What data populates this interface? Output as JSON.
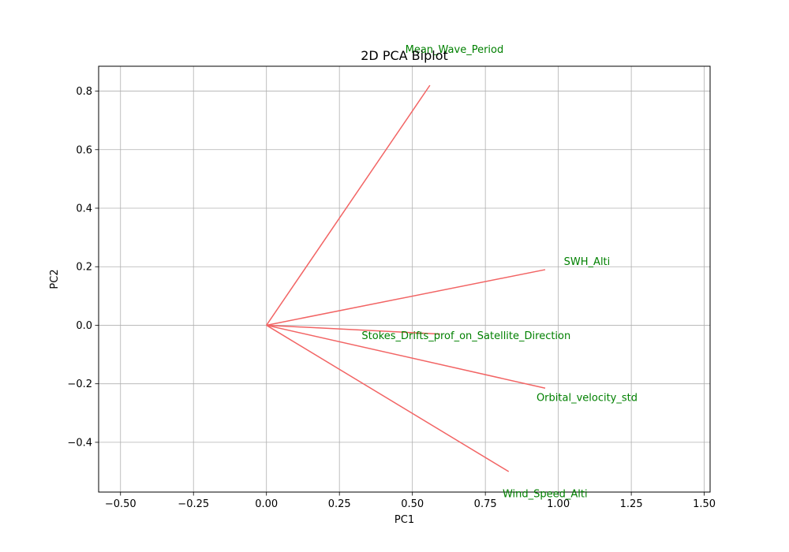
{
  "chart_data": {
    "type": "biplot",
    "title": "2D PCA Biplot",
    "xlabel": "PC1",
    "ylabel": "PC2",
    "xlim": [
      -0.575,
      1.52
    ],
    "ylim": [
      -0.57,
      0.885
    ],
    "xticks": [
      -0.5,
      -0.25,
      0.0,
      0.25,
      0.5,
      0.75,
      1.0,
      1.25,
      1.5
    ],
    "xtick_labels": [
      "−0.50",
      "−0.25",
      "0.00",
      "0.25",
      "0.50",
      "0.75",
      "1.00",
      "1.25",
      "1.50"
    ],
    "yticks": [
      -0.4,
      -0.2,
      0.0,
      0.2,
      0.4,
      0.6,
      0.8
    ],
    "ytick_labels": [
      "−0.4",
      "−0.2",
      "0.0",
      "0.2",
      "0.4",
      "0.6",
      "0.8"
    ],
    "grid": true,
    "arrow_color": "#f26464",
    "label_color": "#008000",
    "loadings": [
      {
        "name": "Mean_Wave_Period",
        "x": 0.56,
        "y": 0.82
      },
      {
        "name": "SWH_Alti",
        "x": 0.955,
        "y": 0.19
      },
      {
        "name": "Stokes_Drifts_prof_on_Satellite_Direction",
        "x": 0.595,
        "y": -0.03
      },
      {
        "name": "Orbital_velocity_std",
        "x": 0.955,
        "y": -0.215
      },
      {
        "name": "Wind_Speed_Alti",
        "x": 0.83,
        "y": -0.5
      }
    ]
  }
}
